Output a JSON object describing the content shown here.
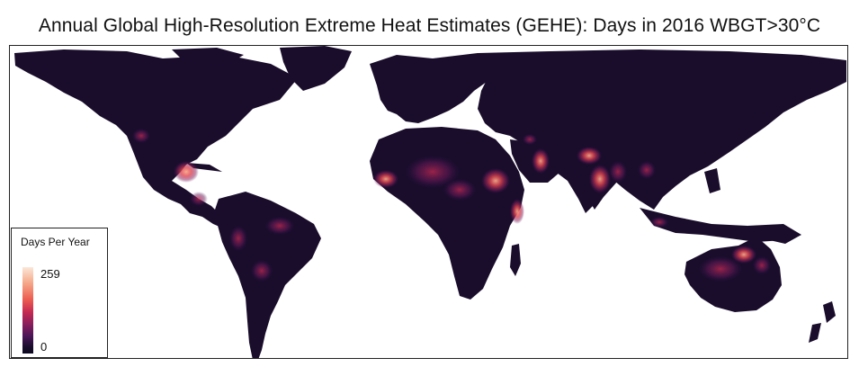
{
  "title": "Annual Global High-Resolution Extreme Heat Estimates (GEHE): Days in 2016 WBGT>30°C",
  "legend": {
    "title": "Days Per Year",
    "max_label": "259",
    "min_label": "0"
  },
  "colors": {
    "land_base": "#1a0d2c",
    "ocean": "#ffffff",
    "heat_low": "#4b1557",
    "heat_mid": "#c52a52",
    "heat_high": "#f6a98a",
    "heat_max": "#fbe7d8"
  }
}
